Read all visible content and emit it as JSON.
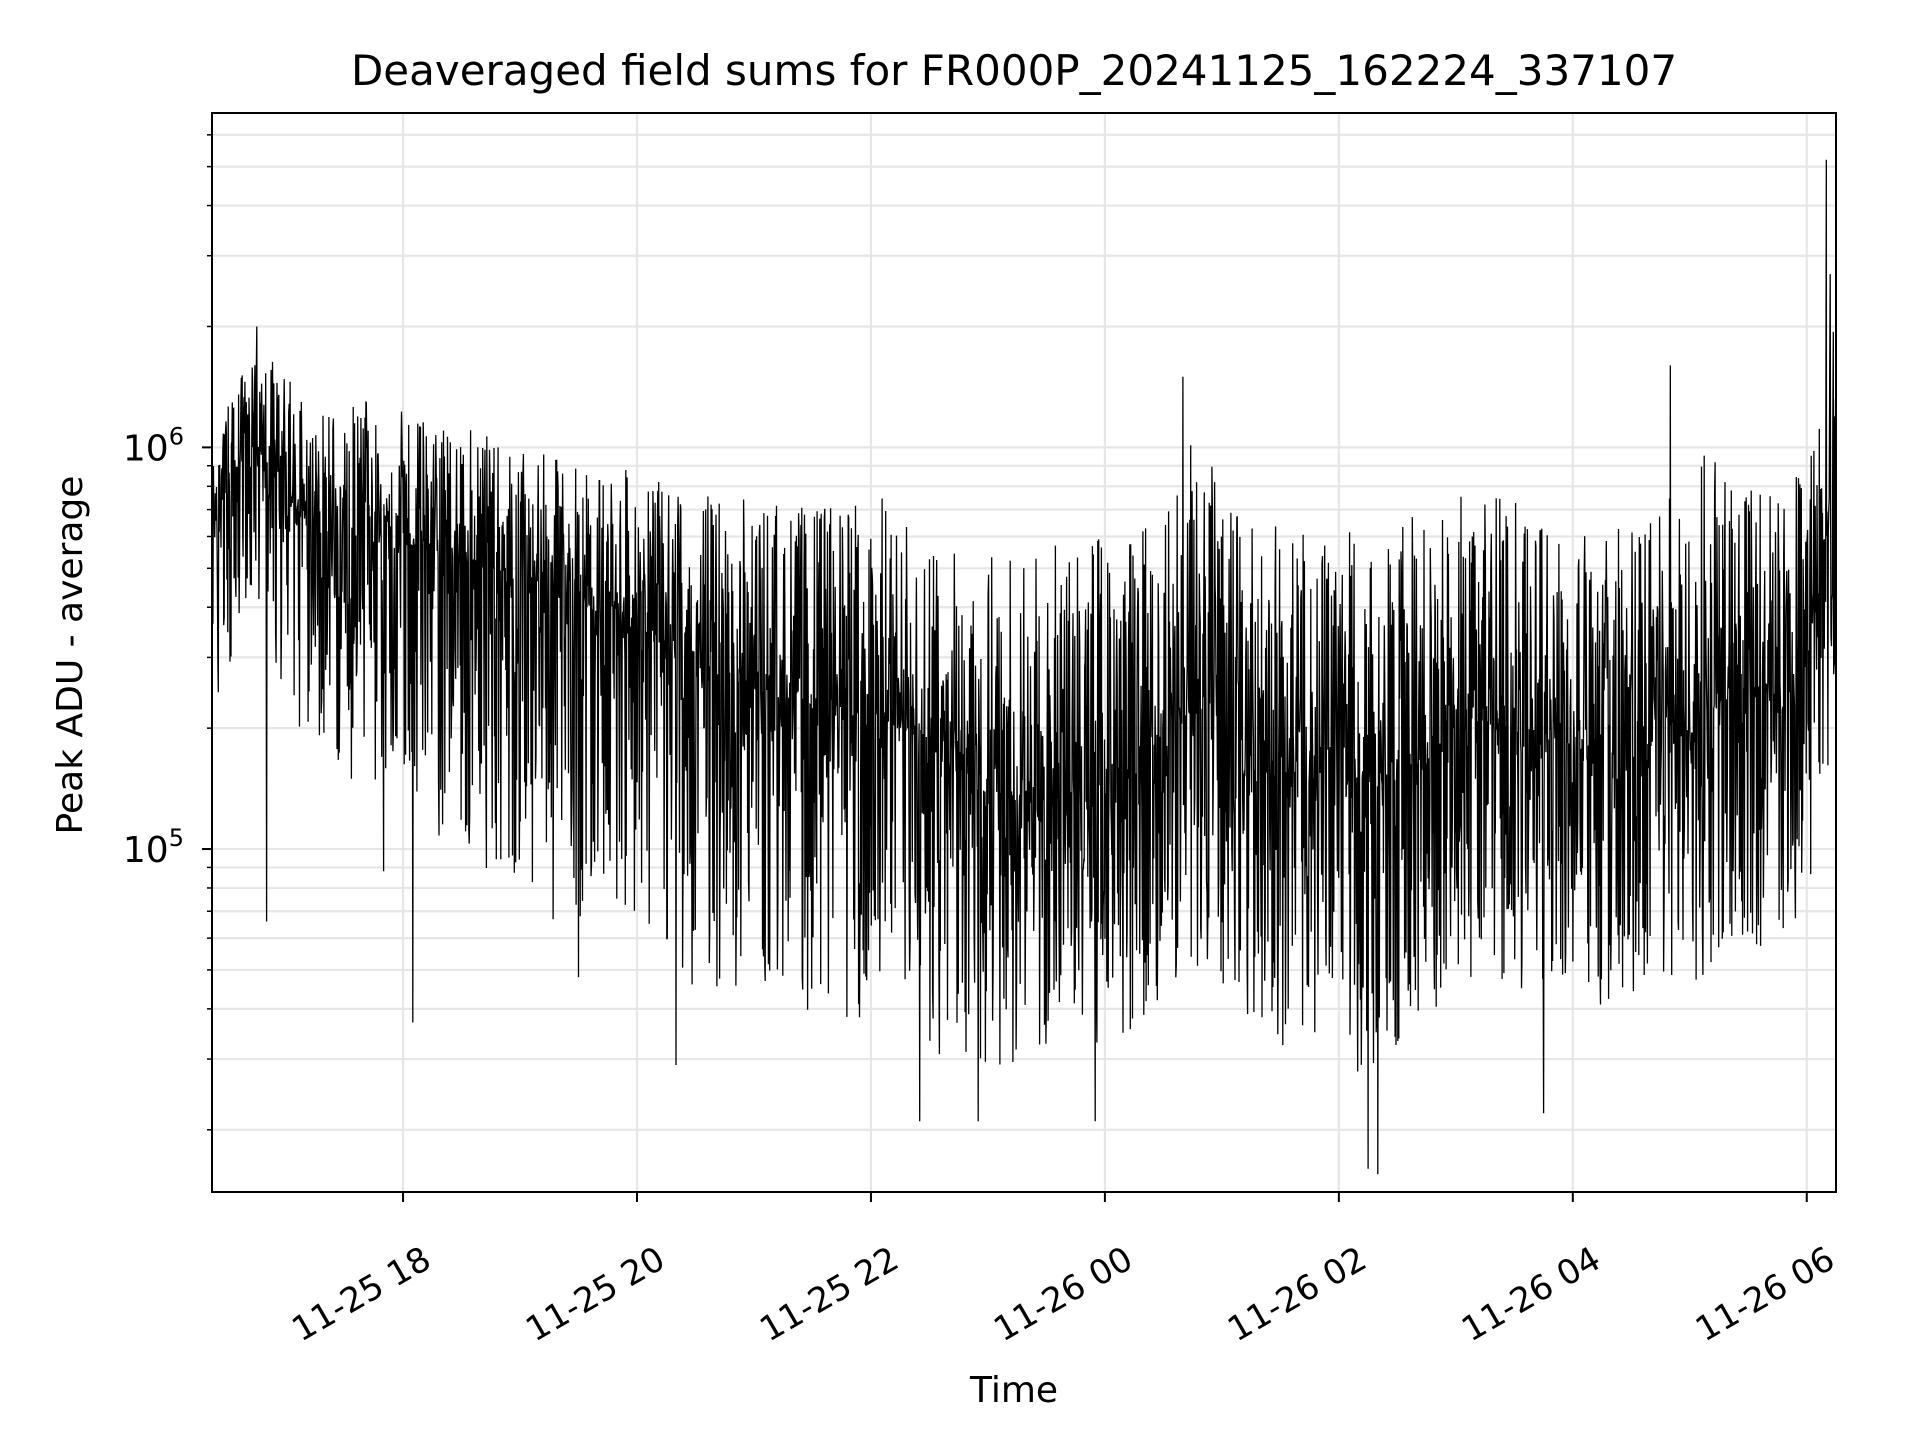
{
  "chart_data": {
    "type": "line",
    "title": "Deaveraged field sums for FR000P_20241125_162224_337107",
    "xlabel": "Time",
    "ylabel": "Peak ADU - average",
    "yscale": "log",
    "grid": true,
    "line_color": "#000000",
    "grid_color": "#e6e6e6",
    "xlim": [
      "2024-11-25 16:22",
      "2024-11-26 06:15"
    ],
    "ylim": [
      14000,
      6800000
    ],
    "x_ticks": [
      {
        "value": "2024-11-25 18:00",
        "label": "11-25 18"
      },
      {
        "value": "2024-11-25 20:00",
        "label": "11-25 20"
      },
      {
        "value": "2024-11-25 22:00",
        "label": "11-25 22"
      },
      {
        "value": "2024-11-26 00:00",
        "label": "11-26 00"
      },
      {
        "value": "2024-11-26 02:00",
        "label": "11-26 02"
      },
      {
        "value": "2024-11-26 04:00",
        "label": "11-26 04"
      },
      {
        "value": "2024-11-26 06:00",
        "label": "11-26 06"
      }
    ],
    "y_ticks": [
      {
        "value": 100000,
        "base": "10",
        "exp": "5"
      },
      {
        "value": 1000000,
        "base": "10",
        "exp": "6"
      }
    ],
    "series": [
      {
        "x": [
          "2024-11-25 16:22",
          "2024-11-25 16:30",
          "2024-11-25 16:45",
          "2024-11-25 17:00",
          "2024-11-25 17:15",
          "2024-11-25 17:30",
          "2024-11-25 17:45",
          "2024-11-25 18:00",
          "2024-11-25 18:15",
          "2024-11-25 18:30",
          "2024-11-25 18:45",
          "2024-11-25 19:00",
          "2024-11-25 19:15",
          "2024-11-25 19:30",
          "2024-11-25 19:45",
          "2024-11-25 20:00",
          "2024-11-25 20:15",
          "2024-11-25 20:30",
          "2024-11-25 20:45",
          "2024-11-25 21:00",
          "2024-11-25 21:15",
          "2024-11-25 21:30",
          "2024-11-25 21:45",
          "2024-11-25 22:00",
          "2024-11-25 22:15",
          "2024-11-25 22:30",
          "2024-11-25 22:45",
          "2024-11-25 23:00",
          "2024-11-25 23:15",
          "2024-11-25 23:30",
          "2024-11-25 23:45",
          "2024-11-26 00:00",
          "2024-11-26 00:15",
          "2024-11-26 00:30",
          "2024-11-26 00:45",
          "2024-11-26 01:00",
          "2024-11-26 01:15",
          "2024-11-26 01:30",
          "2024-11-26 01:45",
          "2024-11-26 02:00",
          "2024-11-26 02:15",
          "2024-11-26 02:30",
          "2024-11-26 02:45",
          "2024-11-26 03:00",
          "2024-11-26 03:15",
          "2024-11-26 03:30",
          "2024-11-26 03:45",
          "2024-11-26 04:00",
          "2024-11-26 04:15",
          "2024-11-26 04:30",
          "2024-11-26 04:45",
          "2024-11-26 05:00",
          "2024-11-26 05:15",
          "2024-11-26 05:30",
          "2024-11-26 05:45",
          "2024-11-26 06:00",
          "2024-11-26 06:08",
          "2024-11-26 06:15"
        ],
        "median": [
          600000,
          800000,
          1000000,
          750000,
          650000,
          620000,
          600000,
          580000,
          550000,
          520000,
          500000,
          480000,
          450000,
          420000,
          400000,
          380000,
          320000,
          280000,
          260000,
          250000,
          240000,
          230000,
          220000,
          210000,
          200000,
          180000,
          160000,
          140000,
          130000,
          130000,
          140000,
          150000,
          160000,
          200000,
          220000,
          200000,
          180000,
          160000,
          150000,
          150000,
          140000,
          150000,
          170000,
          200000,
          210000,
          200000,
          190000,
          180000,
          170000,
          160000,
          170000,
          200000,
          230000,
          250000,
          260000,
          280000,
          500000,
          800000
        ],
        "upper": [
          900000,
          1300000,
          1900000,
          1600000,
          1300000,
          1300000,
          1400000,
          1300000,
          1200000,
          1200000,
          1100000,
          1000000,
          1000000,
          950000,
          950000,
          900000,
          850000,
          850000,
          800000,
          800000,
          800000,
          750000,
          800000,
          900000,
          700000,
          650000,
          600000,
          650000,
          600000,
          600000,
          650000,
          700000,
          650000,
          900000,
          1400000,
          800000,
          700000,
          700000,
          650000,
          650000,
          750000,
          700000,
          750000,
          850000,
          850000,
          800000,
          800000,
          700000,
          700000,
          700000,
          750000,
          1000000,
          1100000,
          900000,
          900000,
          1000000,
          1900000,
          2500000
        ],
        "lower": [
          200000,
          250000,
          400000,
          220000,
          150000,
          140000,
          130000,
          120000,
          100000,
          90000,
          80000,
          70000,
          60000,
          60000,
          70000,
          60000,
          50000,
          40000,
          40000,
          40000,
          40000,
          35000,
          35000,
          30000,
          30000,
          28000,
          26000,
          25000,
          27000,
          27000,
          28000,
          30000,
          32000,
          40000,
          45000,
          40000,
          35000,
          30000,
          28000,
          28000,
          22000,
          30000,
          35000,
          40000,
          42000,
          40000,
          38000,
          35000,
          32000,
          30000,
          32000,
          38000,
          45000,
          50000,
          55000,
          60000,
          100000,
          200000
        ],
        "spikes": [
          {
            "x": "2024-11-25 16:45",
            "y": 2000000
          },
          {
            "x": "2024-11-25 16:50",
            "y": 66000
          },
          {
            "x": "2024-11-25 18:05",
            "y": 37000
          },
          {
            "x": "2024-11-25 17:50",
            "y": 88000
          },
          {
            "x": "2024-11-25 19:30",
            "y": 48000
          },
          {
            "x": "2024-11-25 20:20",
            "y": 29000
          },
          {
            "x": "2024-11-25 22:25",
            "y": 21000
          },
          {
            "x": "2024-11-25 22:55",
            "y": 21000
          },
          {
            "x": "2024-11-25 23:55",
            "y": 21000
          },
          {
            "x": "2024-11-26 00:40",
            "y": 1500000
          },
          {
            "x": "2024-11-26 02:15",
            "y": 16000
          },
          {
            "x": "2024-11-26 02:20",
            "y": 15500
          },
          {
            "x": "2024-11-26 03:45",
            "y": 22000
          },
          {
            "x": "2024-11-26 04:50",
            "y": 1600000
          },
          {
            "x": "2024-11-26 06:10",
            "y": 5200000
          },
          {
            "x": "2024-11-26 06:12",
            "y": 2700000
          }
        ]
      }
    ]
  }
}
